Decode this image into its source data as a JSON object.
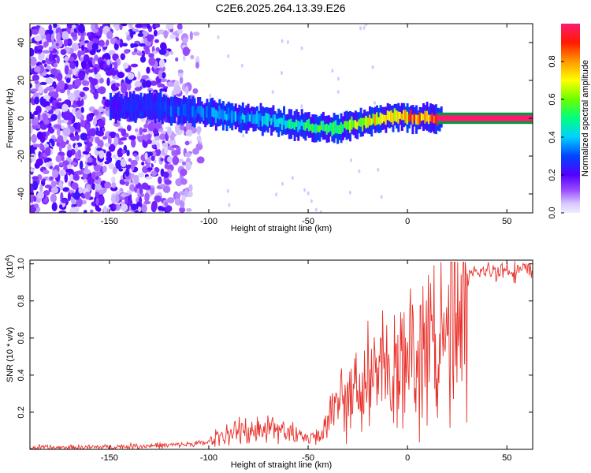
{
  "title": "C2E6.2025.264.13.39.E26",
  "chart_data": [
    {
      "type": "heatmap",
      "xlabel": "Height of straight line (km)",
      "ylabel": "Frequency (Hz)",
      "xlim": [
        -190,
        63
      ],
      "ylim": [
        -50,
        50
      ],
      "xticks": [
        -150,
        -100,
        -50,
        0,
        50
      ],
      "yticks": [
        -40,
        -20,
        0,
        20,
        40
      ],
      "colorbar": {
        "label": "Normalized spectral amplitude",
        "range": [
          0,
          1
        ],
        "ticks": [
          "0.0",
          "0.2",
          "0.4",
          "0.6",
          "0.8"
        ]
      },
      "ridge": {
        "x": [
          -150,
          -130,
          -110,
          -90,
          -70,
          -50,
          -35,
          -25,
          -15,
          -5,
          5,
          15,
          63
        ],
        "frequency": [
          6,
          6,
          4,
          1,
          -1,
          -4,
          -5,
          -3,
          0,
          1,
          0,
          0,
          0
        ],
        "amplitude": [
          0.25,
          0.3,
          0.35,
          0.4,
          0.45,
          0.55,
          0.6,
          0.7,
          0.8,
          0.85,
          0.9,
          0.9,
          1.0
        ]
      }
    },
    {
      "type": "line",
      "xlabel": "Height of straight line (km)",
      "ylabel": "SNR (10 * v/v)",
      "y_scale_label": "(x10",
      "y_scale_exponent": "4",
      "y_scale_suffix": ")",
      "xlim": [
        -190,
        63
      ],
      "ylim": [
        0,
        1.02
      ],
      "xticks": [
        -150,
        -100,
        -50,
        0,
        50
      ],
      "yticks": [
        "0.2",
        "0.4",
        "0.6",
        "0.8",
        "1.0"
      ],
      "series_color": "#e8302a",
      "envelope": {
        "x": [
          -190,
          -150,
          -120,
          -110,
          -100,
          -95,
          -85,
          -75,
          -65,
          -55,
          -50,
          -45,
          -40,
          -35,
          -30,
          -25,
          -20,
          -15,
          -10,
          -5,
          0,
          5,
          10,
          15,
          20,
          25,
          30,
          35,
          40,
          50,
          63
        ],
        "y": [
          0.01,
          0.015,
          0.025,
          0.03,
          0.04,
          0.08,
          0.11,
          0.14,
          0.12,
          0.09,
          0.06,
          0.08,
          0.2,
          0.3,
          0.35,
          0.4,
          0.48,
          0.5,
          0.52,
          0.55,
          0.58,
          0.6,
          0.65,
          0.7,
          0.8,
          0.88,
          0.93,
          0.96,
          0.97,
          0.98,
          0.97
        ]
      }
    }
  ]
}
